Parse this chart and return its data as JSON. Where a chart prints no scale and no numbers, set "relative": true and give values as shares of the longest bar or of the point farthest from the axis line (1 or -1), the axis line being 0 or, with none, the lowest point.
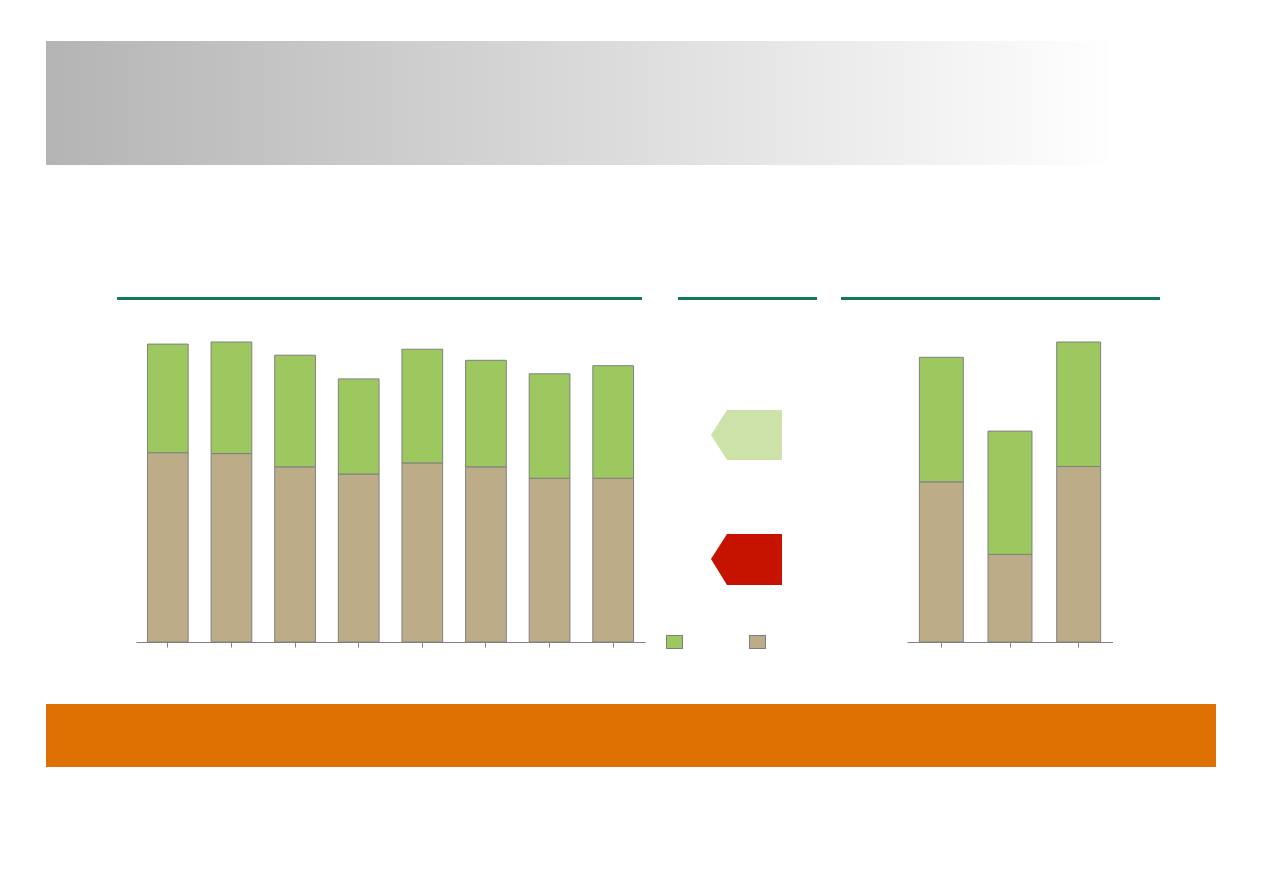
{
  "chart_data": [
    {
      "type": "bar",
      "relative": true,
      "stacked": true,
      "categories": [
        null,
        null,
        null,
        null,
        null,
        null,
        null,
        null
      ],
      "series": [
        {
          "color": "#bcad88",
          "values": [
            0.631,
            0.628,
            0.584,
            0.56,
            0.597,
            0.584,
            0.546,
            0.546
          ]
        },
        {
          "color": "#9dc85f",
          "values": [
            0.362,
            0.372,
            0.372,
            0.317,
            0.379,
            0.355,
            0.348,
            0.375
          ]
        }
      ]
    },
    {
      "type": "bar",
      "relative": true,
      "stacked": true,
      "categories": [
        null,
        null,
        null
      ],
      "series": [
        {
          "color": "#bcad88",
          "values": [
            0.534,
            0.292,
            0.585
          ]
        },
        {
          "color": "#9dc85f",
          "values": [
            0.415,
            0.411,
            0.415
          ]
        }
      ]
    }
  ]
}
